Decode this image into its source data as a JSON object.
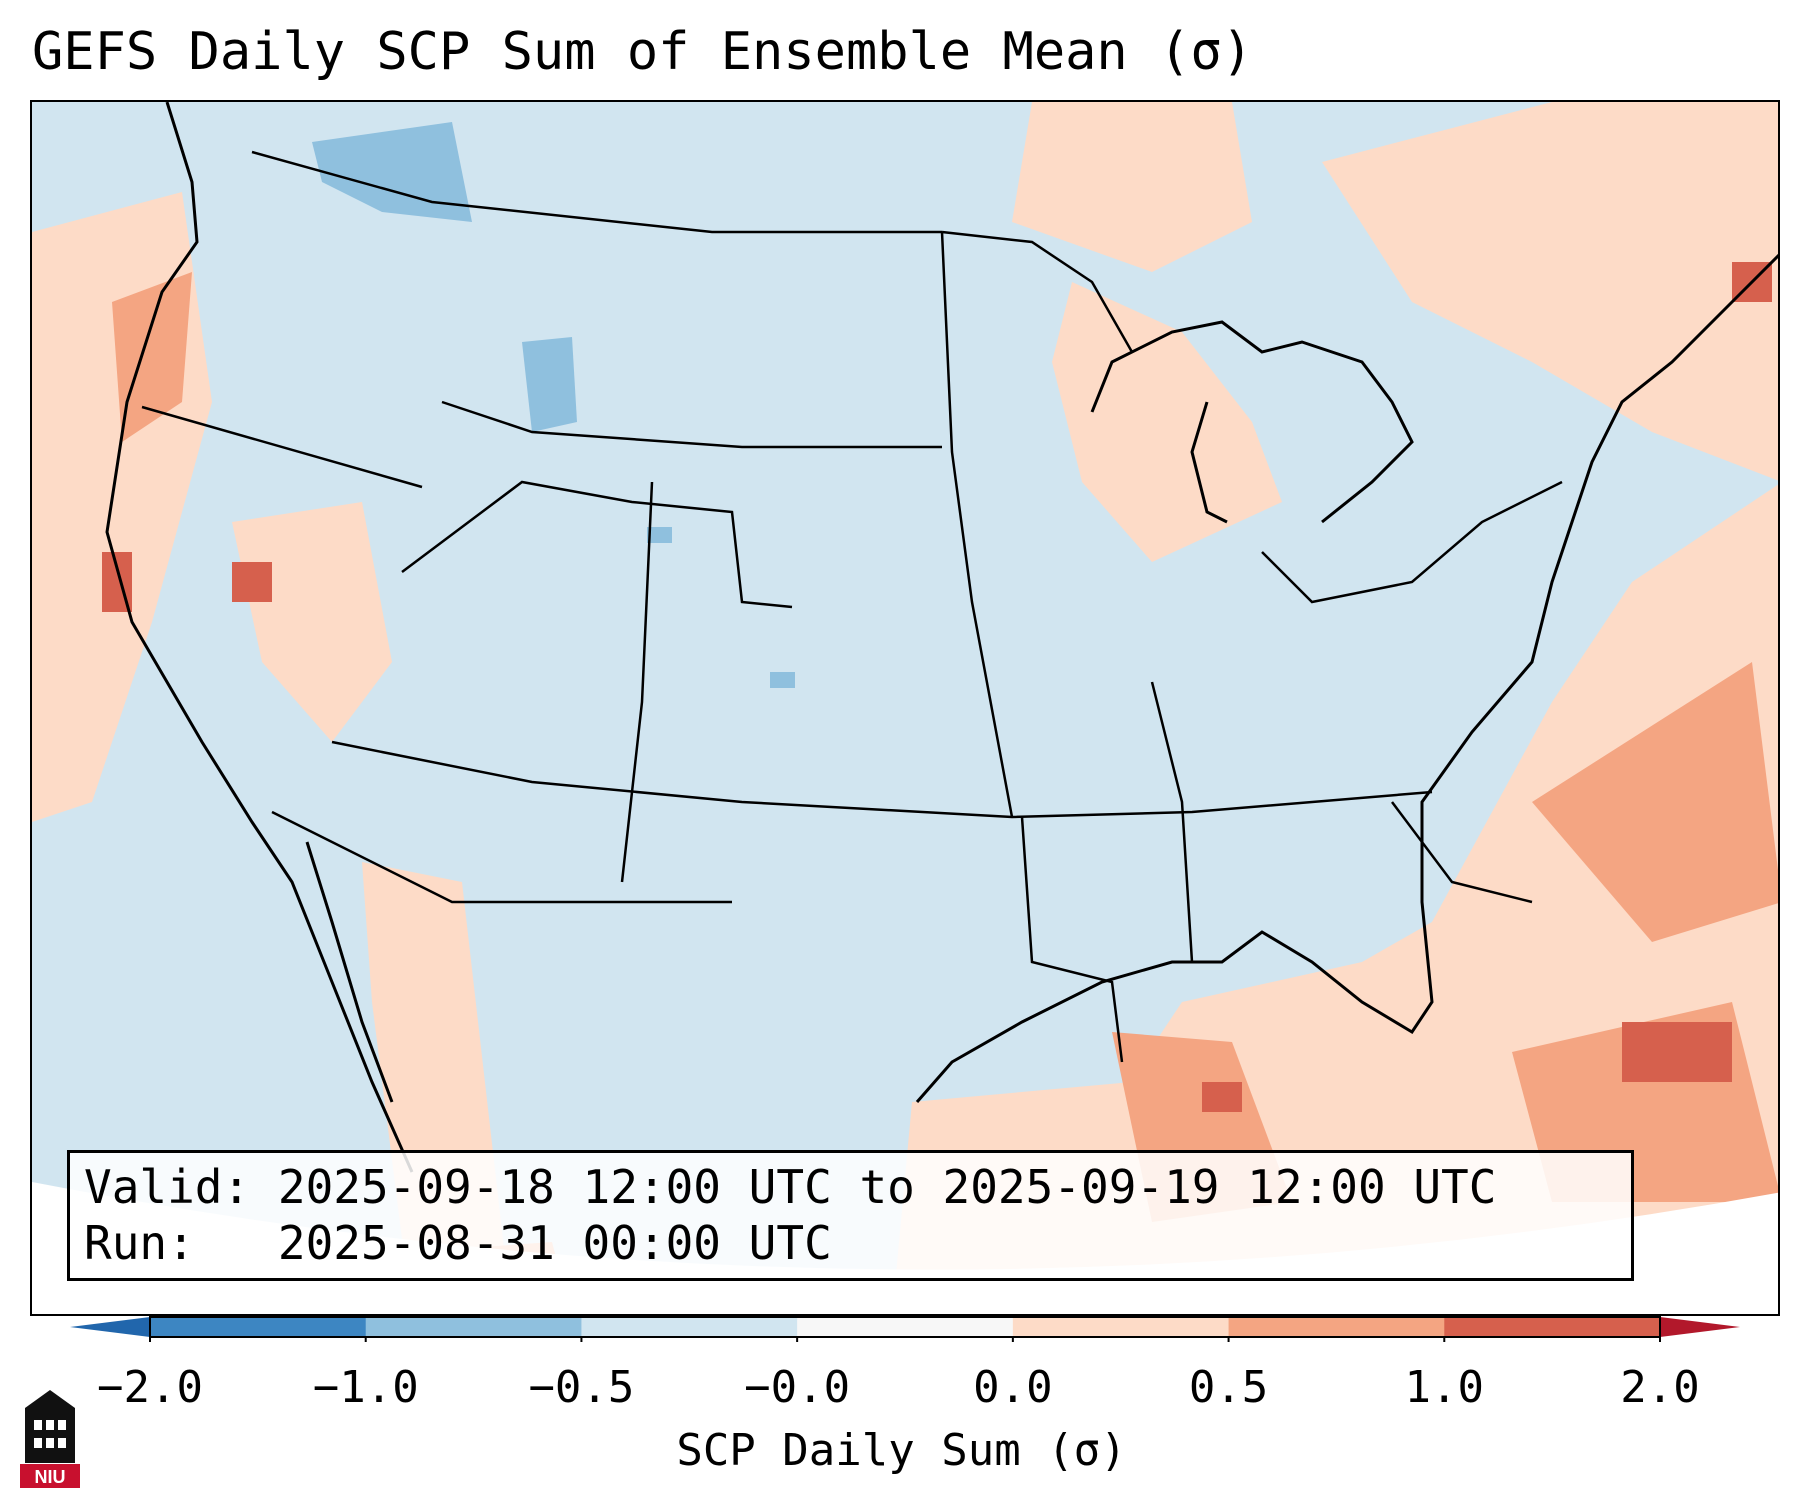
{
  "title": "GEFS Daily SCP Sum of Ensemble Mean (σ)",
  "info": {
    "valid_label": "Valid:",
    "valid_value": "2025-09-18 12:00 UTC to 2025-09-19 12:00 UTC",
    "run_label": "Run:",
    "run_value": "2025-08-31 00:00 UTC"
  },
  "colorbar": {
    "label": "SCP Daily Sum (σ)",
    "ticks": [
      "−2.0",
      "−1.0",
      "−0.5",
      "−0.0",
      "0.0",
      "0.5",
      "1.0",
      "2.0"
    ],
    "bins": [
      {
        "range": "-2.0 to -1.0",
        "color": "#3d86c2"
      },
      {
        "range": "-1.0 to -0.5",
        "color": "#8fc0de"
      },
      {
        "range": "-0.5 to -0.0",
        "color": "#d1e5f0"
      },
      {
        "range": "-0.0 to 0.0",
        "color": "#f7f7f7"
      },
      {
        "range": "0.0 to 0.5",
        "color": "#fddbc7"
      },
      {
        "range": "0.5 to 1.0",
        "color": "#f4a582"
      },
      {
        "range": "1.0 to 2.0",
        "color": "#d6604d"
      }
    ],
    "under_color": "#2166ac",
    "over_color": "#b2182b"
  },
  "logo": {
    "text": "NIU",
    "color": "#c8102e"
  }
}
